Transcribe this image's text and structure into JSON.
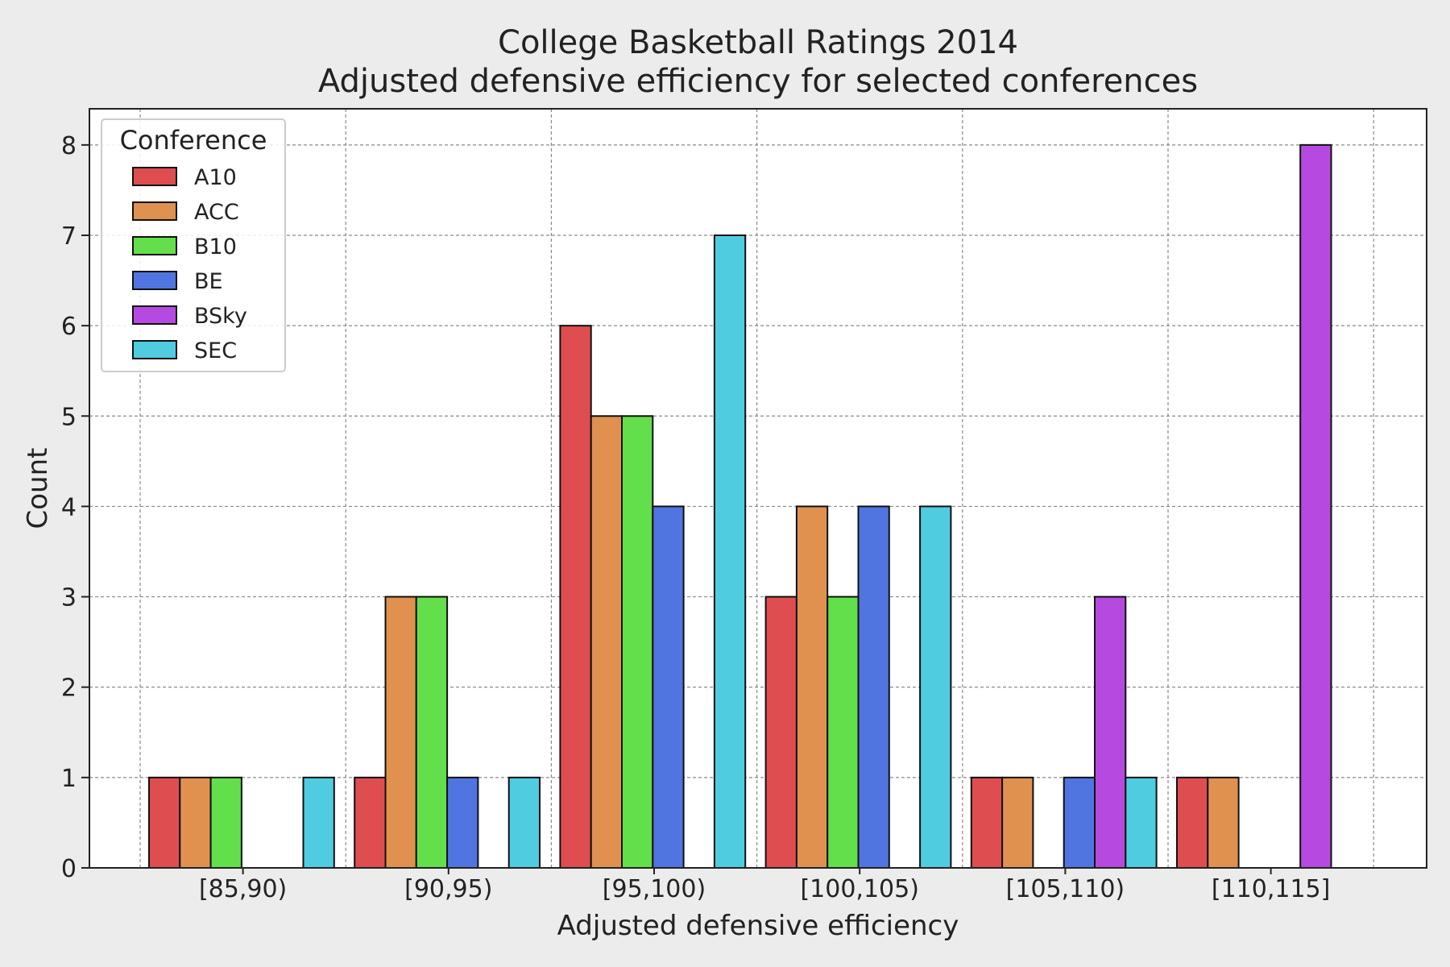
{
  "chart_data": {
    "type": "bar",
    "title": "College Basketball Ratings 2014",
    "subtitle": "Adjusted defensive efficiency for selected conferences",
    "xlabel": "Adjusted defensive efficiency",
    "ylabel": "Count",
    "categories": [
      "[85,90)",
      "[90,95)",
      "[95,100)",
      "[100,105)",
      "[105,110)",
      "[110,115]"
    ],
    "ylim": [
      0,
      8.4
    ],
    "yticks": [
      0,
      1,
      2,
      3,
      4,
      5,
      6,
      7,
      8
    ],
    "grid": true,
    "legend": {
      "title": "Conference",
      "placement": "top-left"
    },
    "series": [
      {
        "name": "A10",
        "color": "#de4e51",
        "values": [
          1,
          1,
          6,
          3,
          1,
          1
        ]
      },
      {
        "name": "ACC",
        "color": "#e0914f",
        "values": [
          1,
          3,
          5,
          4,
          1,
          1
        ]
      },
      {
        "name": "B10",
        "color": "#63df4b",
        "values": [
          1,
          3,
          5,
          3,
          0,
          0
        ]
      },
      {
        "name": "BE",
        "color": "#5075e1",
        "values": [
          0,
          1,
          4,
          4,
          1,
          0
        ]
      },
      {
        "name": "BSky",
        "color": "#b64ae0",
        "values": [
          0,
          0,
          0,
          0,
          3,
          8
        ]
      },
      {
        "name": "SEC",
        "color": "#50cce1",
        "values": [
          1,
          1,
          7,
          4,
          1,
          0
        ]
      }
    ]
  }
}
